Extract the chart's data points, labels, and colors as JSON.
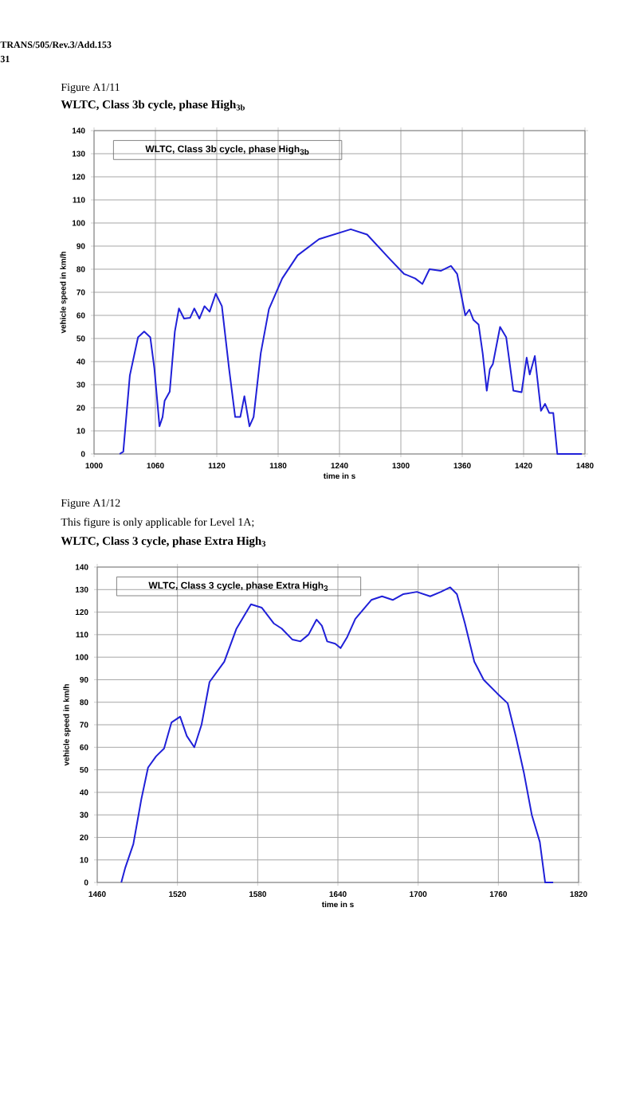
{
  "chart_data": [
    {
      "type": "line",
      "title": "WLTC, Class 3b cycle, phase High$_{3b}$",
      "xlabel": "time in s",
      "ylabel": "vehicle speed in km/h",
      "annotations": [
        "TRANS/505/Rev.3/Add.153",
        "31",
        "Figure A1/11",
        "WLTC, Class 3b cycle, phase High$_{3b}$"
      ],
      "xlim": [
        1000,
        1480
      ],
      "ylim": [
        0,
        140
      ],
      "xticks": [
        1000,
        1060,
        1120,
        1180,
        1240,
        1300,
        1360,
        1420,
        1480
      ],
      "yticks": [
        0,
        10,
        20,
        30,
        40,
        50,
        60,
        70,
        80,
        90,
        100,
        110,
        120,
        130,
        140
      ],
      "grid": true,
      "series": [
        {
          "color": "#2020d8",
          "x": [
            1025,
            1028.6,
            1035,
            1043,
            1049,
            1055,
            1059,
            1064,
            1067,
            1069,
            1074,
            1079,
            1083,
            1088,
            1094,
            1098,
            1103,
            1108,
            1113,
            1119,
            1125,
            1132,
            1138,
            1143,
            1147,
            1152,
            1156,
            1163,
            1171,
            1184,
            1199,
            1220,
            1251,
            1267,
            1290,
            1303,
            1314,
            1321,
            1328,
            1339,
            1349,
            1355,
            1363,
            1367,
            1371,
            1376,
            1380,
            1384,
            1387,
            1390,
            1397,
            1403,
            1410,
            1418,
            1423,
            1426,
            1431,
            1433,
            1437,
            1441,
            1445,
            1449,
            1453,
            1477
          ],
          "values": [
            0,
            1,
            34,
            50.5,
            53,
            50.5,
            37,
            12,
            16,
            23,
            27,
            53,
            63,
            58.6,
            59,
            63,
            58.6,
            64,
            61.6,
            69.4,
            64,
            37,
            16,
            16,
            25,
            12,
            16,
            43.6,
            62.7,
            76,
            86,
            93,
            97.3,
            95,
            84,
            78,
            76,
            73.6,
            80,
            79.3,
            81.4,
            78,
            60,
            62.5,
            58,
            56,
            43.6,
            27.4,
            36.7,
            39,
            55,
            50.5,
            27.4,
            26.7,
            41.7,
            34.4,
            42.4,
            34.4,
            18.7,
            21.7,
            17.8,
            17.8,
            0,
            0
          ]
        }
      ]
    },
    {
      "type": "line",
      "title": "WLTC, Class 3 cycle, phase Extra High$_{3}$",
      "xlabel": "time in s",
      "ylabel": "vehicle speed in km/h",
      "annotations": [
        "Figure A1/12",
        "This figure is only applicable for Level 1A;",
        "WLTC, Class 3 cycle, phase Extra High$_{3}$"
      ],
      "xlim": [
        1460,
        1820
      ],
      "ylim": [
        0,
        140
      ],
      "xticks": [
        1460,
        1520,
        1580,
        1640,
        1700,
        1760,
        1820
      ],
      "yticks": [
        0,
        10,
        20,
        30,
        40,
        50,
        60,
        70,
        80,
        90,
        100,
        110,
        120,
        130,
        140
      ],
      "grid": true,
      "series": [
        {
          "color": "#2020d8",
          "x": [
            1478,
            1481,
            1487,
            1493,
            1498,
            1504,
            1510,
            1515.5,
            1522,
            1527,
            1532.6,
            1538,
            1544,
            1555,
            1564,
            1575,
            1583,
            1592,
            1598,
            1606,
            1612,
            1618,
            1624,
            1628,
            1632,
            1638,
            1642,
            1647,
            1653,
            1665,
            1673,
            1681,
            1689,
            1699,
            1709,
            1717,
            1724,
            1729,
            1735,
            1742,
            1749,
            1759,
            1767,
            1773,
            1779,
            1785,
            1791,
            1795,
            1801
          ],
          "values": [
            0,
            6.6,
            17,
            37,
            51,
            56,
            59.5,
            71,
            73.6,
            65,
            60,
            70,
            89,
            98,
            112.5,
            123.5,
            122,
            115,
            112.7,
            107.8,
            107,
            110,
            116.7,
            114,
            107,
            106,
            104,
            109,
            117,
            125.4,
            127,
            125.4,
            128,
            129,
            127,
            129,
            131,
            128,
            115,
            98,
            90,
            84,
            79.5,
            65,
            49,
            30,
            18,
            0,
            0
          ]
        }
      ]
    }
  ]
}
